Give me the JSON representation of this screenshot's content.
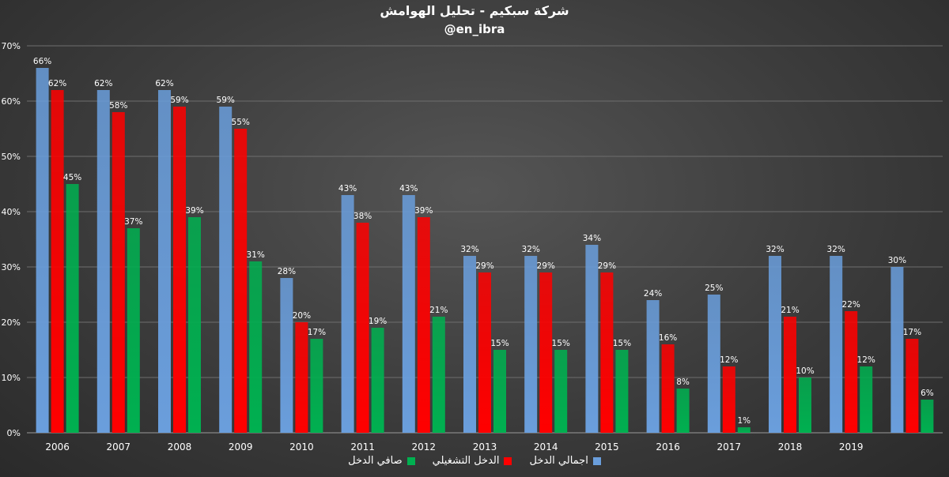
{
  "chart_data": {
    "type": "bar",
    "title": "شركة سبكيم - تحليل الهوامش",
    "subtitle": "@en_ibra",
    "categories": [
      "2006",
      "2007",
      "2008",
      "2009",
      "2010",
      "2011",
      "2012",
      "2013",
      "2014",
      "2015",
      "2016",
      "2017",
      "2018",
      "2019",
      ""
    ],
    "ylim": [
      0,
      70
    ],
    "yticks": [
      "0%",
      "10%",
      "20%",
      "30%",
      "40%",
      "50%",
      "60%",
      "70%"
    ],
    "grid": true,
    "legend_position": "bottom",
    "series": [
      {
        "name": "اجمالي الدخل",
        "color": "#6a9edc",
        "values": [
          66,
          62,
          62,
          59,
          28,
          43,
          43,
          32,
          32,
          34,
          24,
          25,
          32,
          32,
          30
        ],
        "labels": [
          "66%",
          "62%",
          "62%",
          "59%",
          "28%",
          "43%",
          "43%",
          "32%",
          "32%",
          "34%",
          "24%",
          "25%",
          "32%",
          "32%",
          "30%"
        ]
      },
      {
        "name": "الدخل التشغيلي",
        "color": "#ff0000",
        "values": [
          62,
          58,
          59,
          55,
          20,
          38,
          39,
          29,
          29,
          29,
          16,
          12,
          21,
          22,
          17
        ],
        "labels": [
          "62%",
          "58%",
          "59%",
          "55%",
          "20%",
          "38%",
          "39%",
          "29%",
          "29%",
          "29%",
          "16%",
          "12%",
          "21%",
          "22%",
          "17%"
        ]
      },
      {
        "name": "صافي الدخل",
        "color": "#00b050",
        "values": [
          45,
          37,
          39,
          31,
          17,
          19,
          21,
          15,
          15,
          15,
          8,
          1,
          10,
          12,
          6
        ],
        "labels": [
          "45%",
          "37%",
          "39%",
          "31%",
          "17%",
          "19%",
          "21%",
          "15%",
          "15%",
          "15%",
          "8%",
          "1%",
          "10%",
          "12%",
          "6%"
        ]
      }
    ]
  }
}
